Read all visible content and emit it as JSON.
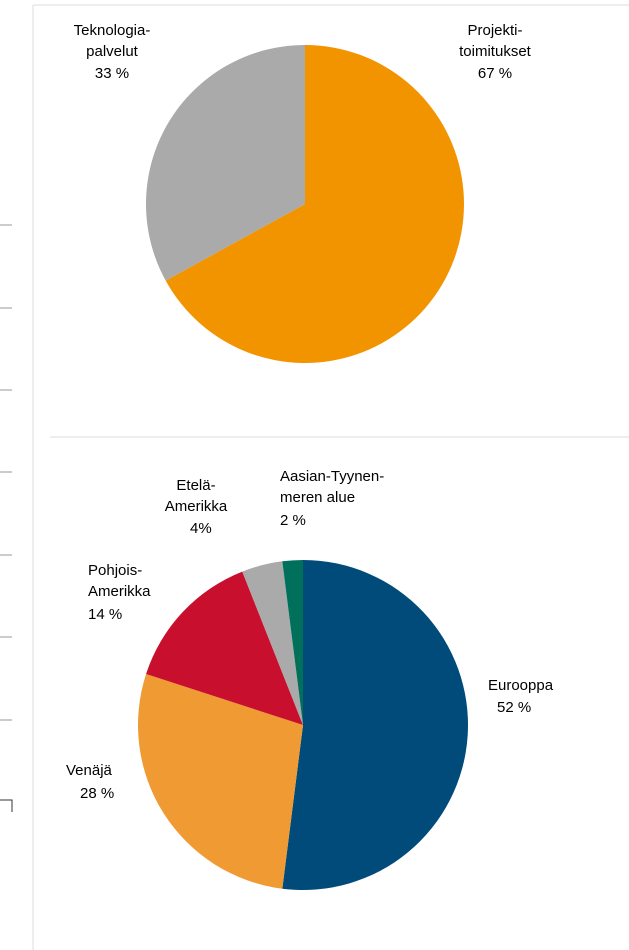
{
  "chart_data": [
    {
      "type": "pie",
      "categories": [
        "Projekti-\ntoimitukset",
        "Teknologia-\npalvelut"
      ],
      "values": [
        67,
        33
      ],
      "value_labels": [
        "67 %",
        "33 %"
      ],
      "colors": [
        "#f29400",
        "#aaaaaa"
      ]
    },
    {
      "type": "pie",
      "categories": [
        "Eurooppa",
        "Venäjä",
        "Pohjois-\nAmerikka",
        "Etelä-\nAmerikka",
        "Aasian-Tyynen-\nmeren alue"
      ],
      "values": [
        52,
        28,
        14,
        4,
        2
      ],
      "value_labels": [
        "52 %",
        "28 %",
        "14 %",
        "4%",
        "2 %"
      ],
      "colors": [
        "#004b7a",
        "#f09a33",
        "#c8102e",
        "#aaaaaa",
        "#00705a"
      ]
    }
  ]
}
